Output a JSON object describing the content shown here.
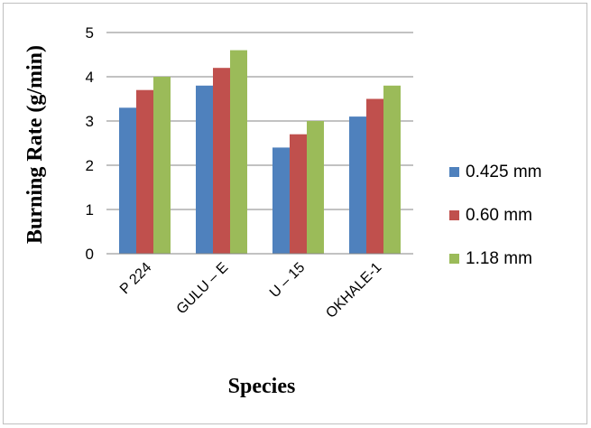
{
  "chart_data": {
    "type": "bar",
    "categories": [
      "P 224",
      "GULU – E",
      "U – 15",
      "OKHALE-1"
    ],
    "series": [
      {
        "name": "0.425 mm",
        "values": [
          3.3,
          3.8,
          2.4,
          3.1
        ],
        "color": "#4f81bd"
      },
      {
        "name": "0.60 mm",
        "values": [
          3.7,
          4.2,
          2.7,
          3.5
        ],
        "color": "#c0504d"
      },
      {
        "name": "1.18 mm",
        "values": [
          4.0,
          4.6,
          3.0,
          3.8
        ],
        "color": "#9bbb59"
      }
    ],
    "xlabel": "Species",
    "ylabel": "Burning Rate (g/min)",
    "ylim": [
      0,
      5
    ],
    "yticks": [
      "0",
      "1",
      "2",
      "3",
      "4",
      "5"
    ],
    "grid": true,
    "legend_position": "right"
  }
}
